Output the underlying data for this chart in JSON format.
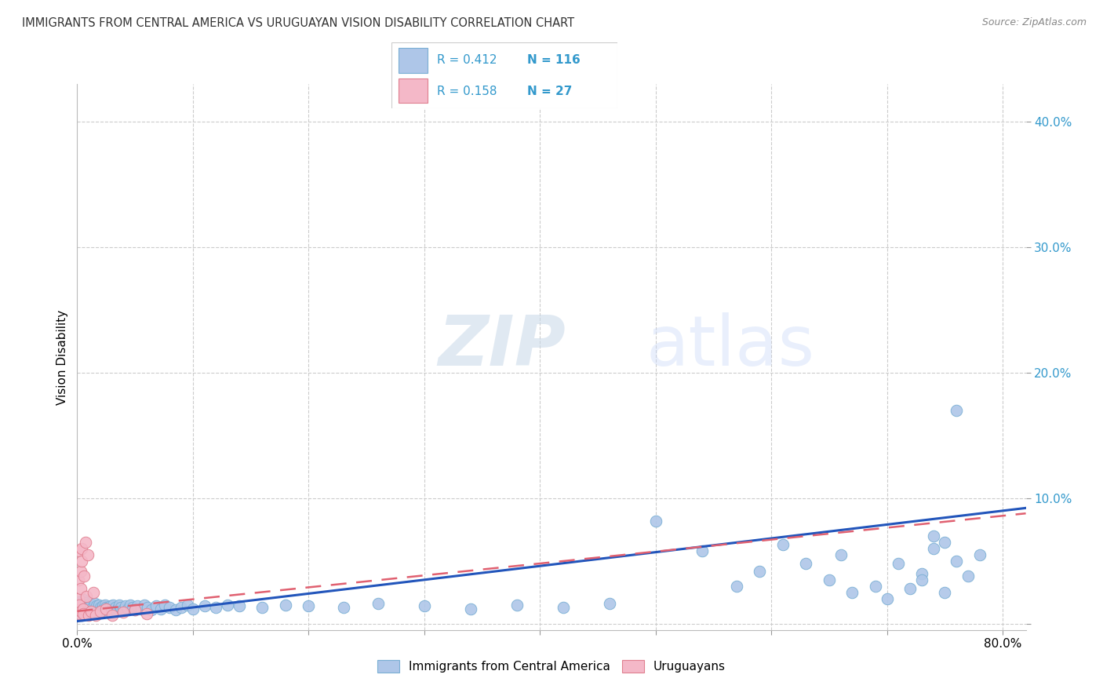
{
  "title": "IMMIGRANTS FROM CENTRAL AMERICA VS URUGUAYAN VISION DISABILITY CORRELATION CHART",
  "source": "Source: ZipAtlas.com",
  "ylabel": "Vision Disability",
  "xlim": [
    0.0,
    0.82
  ],
  "ylim": [
    -0.005,
    0.43
  ],
  "xticks": [
    0.0,
    0.1,
    0.2,
    0.3,
    0.4,
    0.5,
    0.6,
    0.7,
    0.8
  ],
  "yticks": [
    0.0,
    0.1,
    0.2,
    0.3,
    0.4
  ],
  "blue_color": "#AEC6E8",
  "blue_edge": "#7AAFD4",
  "pink_color": "#F4B8C8",
  "pink_edge": "#E08090",
  "line_blue": "#2255BB",
  "line_pink": "#E06070",
  "watermark_zip": "ZIP",
  "watermark_atlas": "atlas",
  "grid_color": "#CCCCCC",
  "title_color": "#333333",
  "tick_color_blue": "#3399CC",
  "legend_r1": "R = 0.412",
  "legend_n1": "N = 116",
  "legend_r2": "R = 0.158",
  "legend_n2": "N = 27",
  "blue_line_intercept": 0.002,
  "blue_line_slope": 0.11,
  "pink_line_intercept": 0.01,
  "pink_line_slope": 0.095,
  "blue_scatter_x": [
    0.001,
    0.001,
    0.001,
    0.002,
    0.002,
    0.002,
    0.002,
    0.003,
    0.003,
    0.003,
    0.003,
    0.004,
    0.004,
    0.004,
    0.004,
    0.005,
    0.005,
    0.005,
    0.005,
    0.006,
    0.006,
    0.006,
    0.007,
    0.007,
    0.007,
    0.008,
    0.008,
    0.009,
    0.009,
    0.01,
    0.01,
    0.011,
    0.011,
    0.012,
    0.012,
    0.013,
    0.014,
    0.015,
    0.015,
    0.016,
    0.017,
    0.018,
    0.019,
    0.02,
    0.021,
    0.022,
    0.023,
    0.024,
    0.025,
    0.026,
    0.027,
    0.028,
    0.029,
    0.03,
    0.031,
    0.033,
    0.034,
    0.035,
    0.036,
    0.038,
    0.04,
    0.042,
    0.044,
    0.046,
    0.048,
    0.05,
    0.052,
    0.055,
    0.058,
    0.061,
    0.064,
    0.068,
    0.072,
    0.076,
    0.08,
    0.085,
    0.09,
    0.095,
    0.1,
    0.11,
    0.12,
    0.13,
    0.14,
    0.16,
    0.18,
    0.2,
    0.23,
    0.26,
    0.3,
    0.34,
    0.38,
    0.42,
    0.46,
    0.5,
    0.54,
    0.57,
    0.59,
    0.61,
    0.63,
    0.65,
    0.66,
    0.67,
    0.69,
    0.71,
    0.73,
    0.74,
    0.75,
    0.76,
    0.77,
    0.78,
    0.76,
    0.75,
    0.74,
    0.73,
    0.72,
    0.7
  ],
  "blue_scatter_y": [
    0.01,
    0.013,
    0.016,
    0.008,
    0.011,
    0.014,
    0.017,
    0.009,
    0.012,
    0.015,
    0.018,
    0.007,
    0.011,
    0.014,
    0.017,
    0.009,
    0.012,
    0.015,
    0.019,
    0.008,
    0.012,
    0.016,
    0.01,
    0.013,
    0.017,
    0.009,
    0.013,
    0.011,
    0.015,
    0.01,
    0.014,
    0.012,
    0.016,
    0.011,
    0.015,
    0.013,
    0.01,
    0.012,
    0.016,
    0.011,
    0.014,
    0.012,
    0.015,
    0.013,
    0.011,
    0.014,
    0.012,
    0.015,
    0.013,
    0.01,
    0.013,
    0.011,
    0.014,
    0.012,
    0.015,
    0.013,
    0.01,
    0.012,
    0.015,
    0.013,
    0.011,
    0.014,
    0.012,
    0.015,
    0.013,
    0.011,
    0.014,
    0.012,
    0.015,
    0.013,
    0.011,
    0.014,
    0.012,
    0.015,
    0.013,
    0.011,
    0.013,
    0.015,
    0.012,
    0.014,
    0.013,
    0.015,
    0.014,
    0.013,
    0.015,
    0.014,
    0.013,
    0.016,
    0.014,
    0.012,
    0.015,
    0.013,
    0.016,
    0.082,
    0.058,
    0.03,
    0.042,
    0.063,
    0.048,
    0.035,
    0.055,
    0.025,
    0.03,
    0.048,
    0.04,
    0.06,
    0.025,
    0.05,
    0.038,
    0.055,
    0.17,
    0.065,
    0.07,
    0.035,
    0.028,
    0.02
  ],
  "pink_scatter_x": [
    0.001,
    0.001,
    0.001,
    0.002,
    0.002,
    0.002,
    0.003,
    0.003,
    0.003,
    0.004,
    0.004,
    0.005,
    0.005,
    0.006,
    0.007,
    0.008,
    0.009,
    0.01,
    0.012,
    0.014,
    0.016,
    0.02,
    0.025,
    0.03,
    0.04,
    0.05,
    0.06
  ],
  "pink_scatter_y": [
    0.012,
    0.02,
    0.035,
    0.008,
    0.015,
    0.058,
    0.01,
    0.028,
    0.042,
    0.06,
    0.05,
    0.012,
    0.008,
    0.038,
    0.065,
    0.022,
    0.055,
    0.007,
    0.01,
    0.025,
    0.007,
    0.01,
    0.012,
    0.007,
    0.009,
    0.011,
    0.008
  ]
}
